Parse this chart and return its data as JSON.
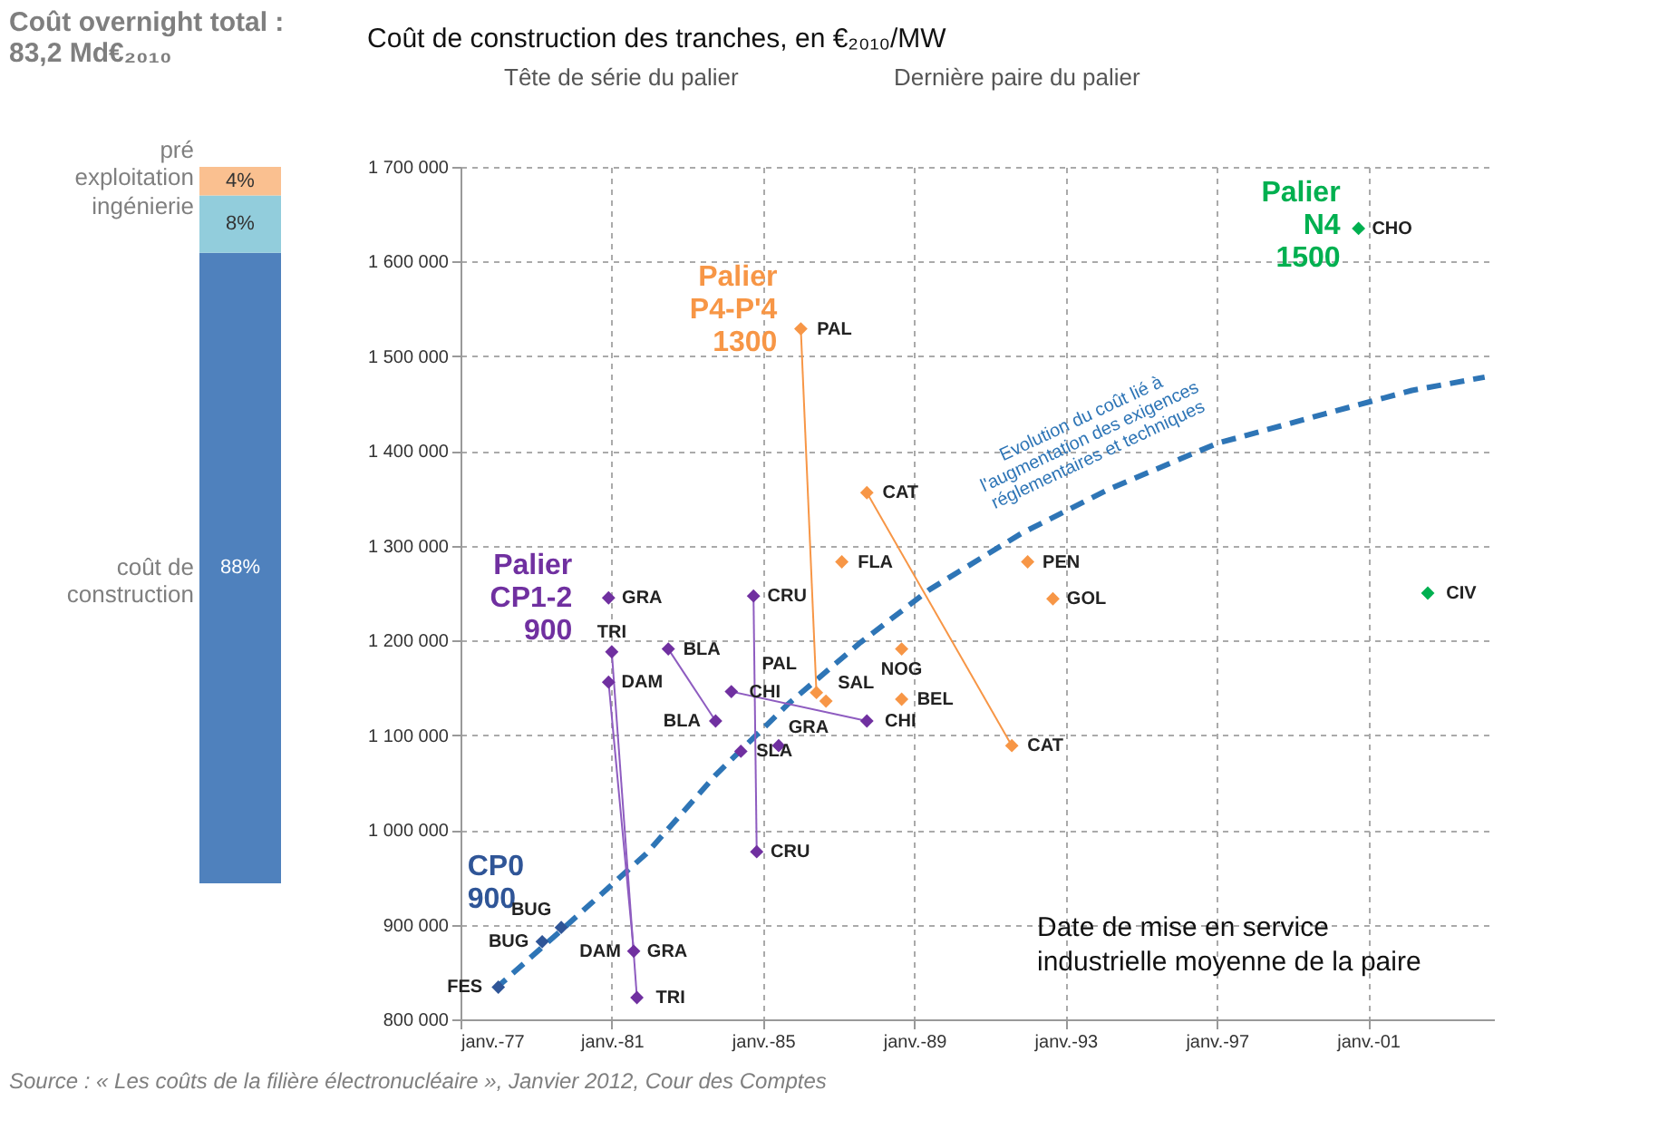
{
  "chart_data": [
    {
      "type": "bar",
      "title": "Coût overnight total : 83,2 Md€₂₀₁₀",
      "stacked": true,
      "categories": [
        null
      ],
      "series": [
        {
          "name": "coût de construction",
          "color": "#4f81bd",
          "values": [
            88
          ],
          "value_labels": [
            "88%"
          ]
        },
        {
          "name": "ingénierie",
          "color": "#92cddc",
          "values": [
            8
          ],
          "value_labels": [
            "8%"
          ]
        },
        {
          "name": "pré exploitation",
          "color": "#fac090",
          "values": [
            4
          ],
          "value_labels": [
            "4%"
          ]
        }
      ]
    },
    {
      "type": "scatter",
      "title": "Coût de construction des tranches, en €₂₀₁₀/MW",
      "xlabel": "Date de mise en service industrielle moyenne de la paire",
      "xlim": [
        "1977-01",
        "2004-05"
      ],
      "ylim": [
        800000,
        1700000
      ],
      "xticks": [
        {
          "value": "1977-01",
          "label": "janv.-77"
        },
        {
          "value": "1981-01",
          "label": "janv.-81"
        },
        {
          "value": "1985-01",
          "label": "janv.-85"
        },
        {
          "value": "1989-01",
          "label": "janv.-89"
        },
        {
          "value": "1993-01",
          "label": "janv.-93"
        },
        {
          "value": "1997-01",
          "label": "janv.-97"
        },
        {
          "value": "2001-01",
          "label": "janv.-01"
        }
      ],
      "yticks": [
        {
          "value": 800000,
          "label": "800 000"
        },
        {
          "value": 900000,
          "label": "900 000"
        },
        {
          "value": 1000000,
          "label": "1 000 000"
        },
        {
          "value": 1100000,
          "label": "1 100 000"
        },
        {
          "value": 1200000,
          "label": "1 200 000"
        },
        {
          "value": 1300000,
          "label": "1 300 000"
        },
        {
          "value": 1400000,
          "label": "1 400 000"
        },
        {
          "value": 1500000,
          "label": "1 500 000"
        },
        {
          "value": 1600000,
          "label": "1 600 000"
        },
        {
          "value": 1700000,
          "label": "1 700 000"
        }
      ],
      "grid": true,
      "series": [
        {
          "type": "line",
          "name": "Evolution du coût lié à l'augmentation des exigences réglementaires et techniques",
          "color": "#2e75b6",
          "line_style": "dashed",
          "marker": "none",
          "x": [
            "1977-12",
            "1979-10",
            "1981-12",
            "1983-10",
            "1985-09",
            "1987-08",
            "1989-06",
            "1991-11",
            "1994-03",
            "1997-01",
            "1999-11",
            "2002-03",
            "2004-02"
          ],
          "values": [
            832000,
            897000,
            975000,
            1058000,
            1133000,
            1198000,
            1254000,
            1313000,
            1360000,
            1408000,
            1439000,
            1464000,
            1478000
          ]
        },
        {
          "type": "line",
          "color": "#8e5cc0",
          "marker": "none",
          "x": [
            "1981-01",
            "1981-09",
            null,
            "1980-12",
            "1981-08",
            null,
            "1984-10",
            "1984-11",
            null,
            "1982-07",
            "1983-10",
            null,
            "1984-03",
            "1987-10"
          ],
          "values": [
            1188000,
            823000,
            null,
            1156000,
            872000,
            null,
            1247000,
            977000,
            null,
            1191000,
            1115000,
            null,
            1146000,
            1115000
          ]
        },
        {
          "type": "line",
          "color": "#f79646",
          "marker": "none",
          "x": [
            "1986-01",
            "1986-06",
            null,
            "1987-10",
            "1991-08"
          ],
          "values": [
            1529000,
            1145000,
            null,
            1356000,
            1089000
          ]
        },
        {
          "type": "scatter",
          "name": "CP0 900",
          "color": "#2f5597",
          "marker": "diamond",
          "x": [
            "1979-09",
            "1979-03",
            "1978-01"
          ],
          "values": [
            897000,
            882000,
            834000
          ]
        },
        {
          "type": "scatter",
          "name": "Palier CP1-2 900",
          "color": "#7030a0",
          "marker": "diamond",
          "x": [
            "1980-12",
            "1981-01",
            "1980-12",
            "1982-07",
            "1983-10",
            "1984-10",
            "1984-03",
            "1984-06",
            "1985-06",
            "1987-10",
            "1984-11",
            "1981-08",
            "1981-09"
          ],
          "values": [
            1245000,
            1188000,
            1156000,
            1191000,
            1115000,
            1247000,
            1146000,
            1083000,
            1089000,
            1115000,
            977000,
            872000,
            823000
          ]
        },
        {
          "type": "scatter",
          "name": "Palier P4-P'4 1300",
          "color": "#f79646",
          "marker": "diamond",
          "x": [
            "1986-01",
            "1987-10",
            "1987-02",
            "1992-01",
            "1992-09",
            "1988-09",
            "1988-09",
            "1991-08",
            "1986-06",
            "1986-09"
          ],
          "values": [
            1529000,
            1356000,
            1283000,
            1283000,
            1244000,
            1191000,
            1138000,
            1089000,
            1145000,
            1136000
          ]
        },
        {
          "type": "scatter",
          "name": "Palier N4 1500",
          "color": "#00b050",
          "marker": "diamond",
          "x": [
            "2000-10",
            "2002-08"
          ],
          "values": [
            1635000,
            1250000
          ]
        }
      ],
      "annotations": [
        "Tête de série du palier",
        "Dernière paire du palier",
        "Source : « Les coûts de la filière électronucléaire », Janvier 2012, Cour des Comptes",
        {
          "text": "GRA",
          "x": "1980-12",
          "y": 1245000
        },
        {
          "text": "TRI",
          "x": "1981-01",
          "y": 1188000
        },
        {
          "text": "DAM",
          "x": "1980-12",
          "y": 1156000
        },
        {
          "text": "BLA",
          "x": "1982-07",
          "y": 1191000
        },
        {
          "text": "BLA",
          "x": "1983-10",
          "y": 1115000
        },
        {
          "text": "CRU",
          "x": "1984-10",
          "y": 1247000
        },
        {
          "text": "CHI",
          "x": "1984-03",
          "y": 1146000
        },
        {
          "text": "SLA",
          "x": "1984-06",
          "y": 1083000
        },
        {
          "text": "GRA",
          "x": "1985-06",
          "y": 1089000
        },
        {
          "text": "CHI",
          "x": "1987-10",
          "y": 1115000
        },
        {
          "text": "CRU",
          "x": "1984-11",
          "y": 977000
        },
        {
          "text": "GRA",
          "x": "1981-08",
          "y": 872000
        },
        {
          "text": "DAM",
          "x": "1981-08",
          "y": 872000
        },
        {
          "text": "TRI",
          "x": "1981-09",
          "y": 823000
        },
        {
          "text": "BUG",
          "x": "1979-09",
          "y": 897000
        },
        {
          "text": "BUG",
          "x": "1979-03",
          "y": 882000
        },
        {
          "text": "FES",
          "x": "1978-01",
          "y": 834000
        },
        {
          "text": "PAL",
          "x": "1986-01",
          "y": 1529000
        },
        {
          "text": "CAT",
          "x": "1987-10",
          "y": 1356000
        },
        {
          "text": "FLA",
          "x": "1987-02",
          "y": 1283000
        },
        {
          "text": "PEN",
          "x": "1992-01",
          "y": 1283000
        },
        {
          "text": "GOL",
          "x": "1992-09",
          "y": 1244000
        },
        {
          "text": "NOG",
          "x": "1988-09",
          "y": 1191000
        },
        {
          "text": "BEL",
          "x": "1988-09",
          "y": 1138000
        },
        {
          "text": "CAT",
          "x": "1991-08",
          "y": 1089000
        },
        {
          "text": "PAL",
          "x": "1986-06",
          "y": 1145000
        },
        {
          "text": "SAL",
          "x": "1986-09",
          "y": 1136000
        },
        {
          "text": "CHO",
          "x": "2000-10",
          "y": 1635000
        },
        {
          "text": "CIV",
          "x": "2002-08",
          "y": 1250000
        }
      ]
    }
  ]
}
